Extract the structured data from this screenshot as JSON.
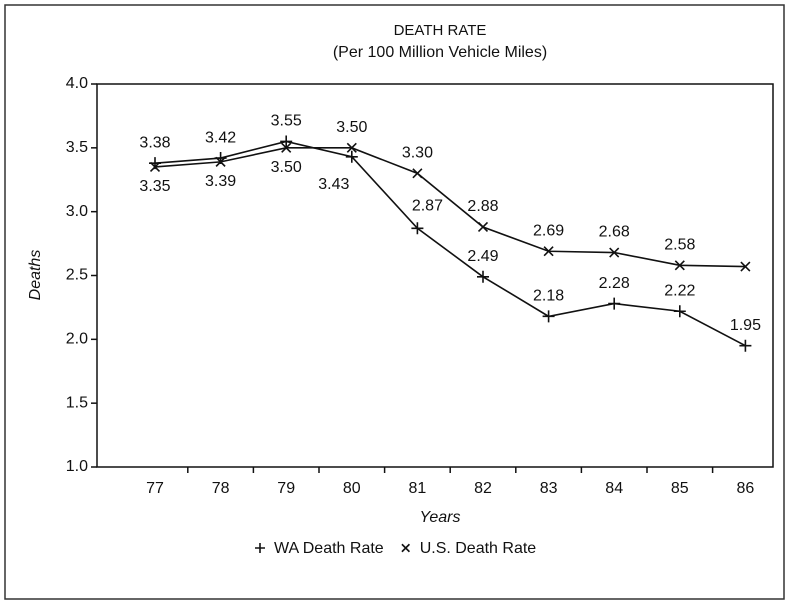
{
  "chart_data": {
    "type": "line",
    "title": "DEATH RATE",
    "subtitle": "(Per 100 Million Vehicle Miles)",
    "y_label": "Deaths",
    "x_label": "Years",
    "categories": [
      "77",
      "78",
      "79",
      "80",
      "81",
      "82",
      "83",
      "84",
      "85",
      "86"
    ],
    "series": [
      {
        "name": "WA Death Rate",
        "color": "#111111",
        "marker": "plus",
        "values": [
          3.38,
          3.42,
          3.55,
          3.43,
          2.87,
          2.49,
          2.18,
          2.28,
          2.22,
          1.95
        ],
        "value_labels": [
          "3.38",
          "3.42",
          "3.55",
          "3.43",
          "2.87",
          "2.49",
          "2.18",
          "2.28",
          "2.22",
          "1.95"
        ]
      },
      {
        "name": "U.S. Death Rate",
        "color": "#111111",
        "marker": "x",
        "values": [
          3.35,
          3.39,
          3.5,
          3.5,
          3.3,
          2.88,
          2.69,
          2.68,
          2.58,
          2.57
        ],
        "value_labels": [
          "3.35",
          "3.39",
          "3.50",
          "3.50",
          "3.30",
          "2.88",
          "2.69",
          "2.68",
          "2.58",
          null
        ]
      }
    ],
    "ylim": [
      1,
      4
    ],
    "yticks": [
      {
        "value": 1,
        "label": "1.0"
      },
      {
        "value": 1.5,
        "label": "1.5"
      },
      {
        "value": 2,
        "label": "2.0"
      },
      {
        "value": 2.5,
        "label": "2.5"
      },
      {
        "value": 3,
        "label": "3.0"
      },
      {
        "value": 3.5,
        "label": "3.5"
      },
      {
        "value": 4,
        "label": "4.0"
      }
    ],
    "legend": "bottom"
  }
}
